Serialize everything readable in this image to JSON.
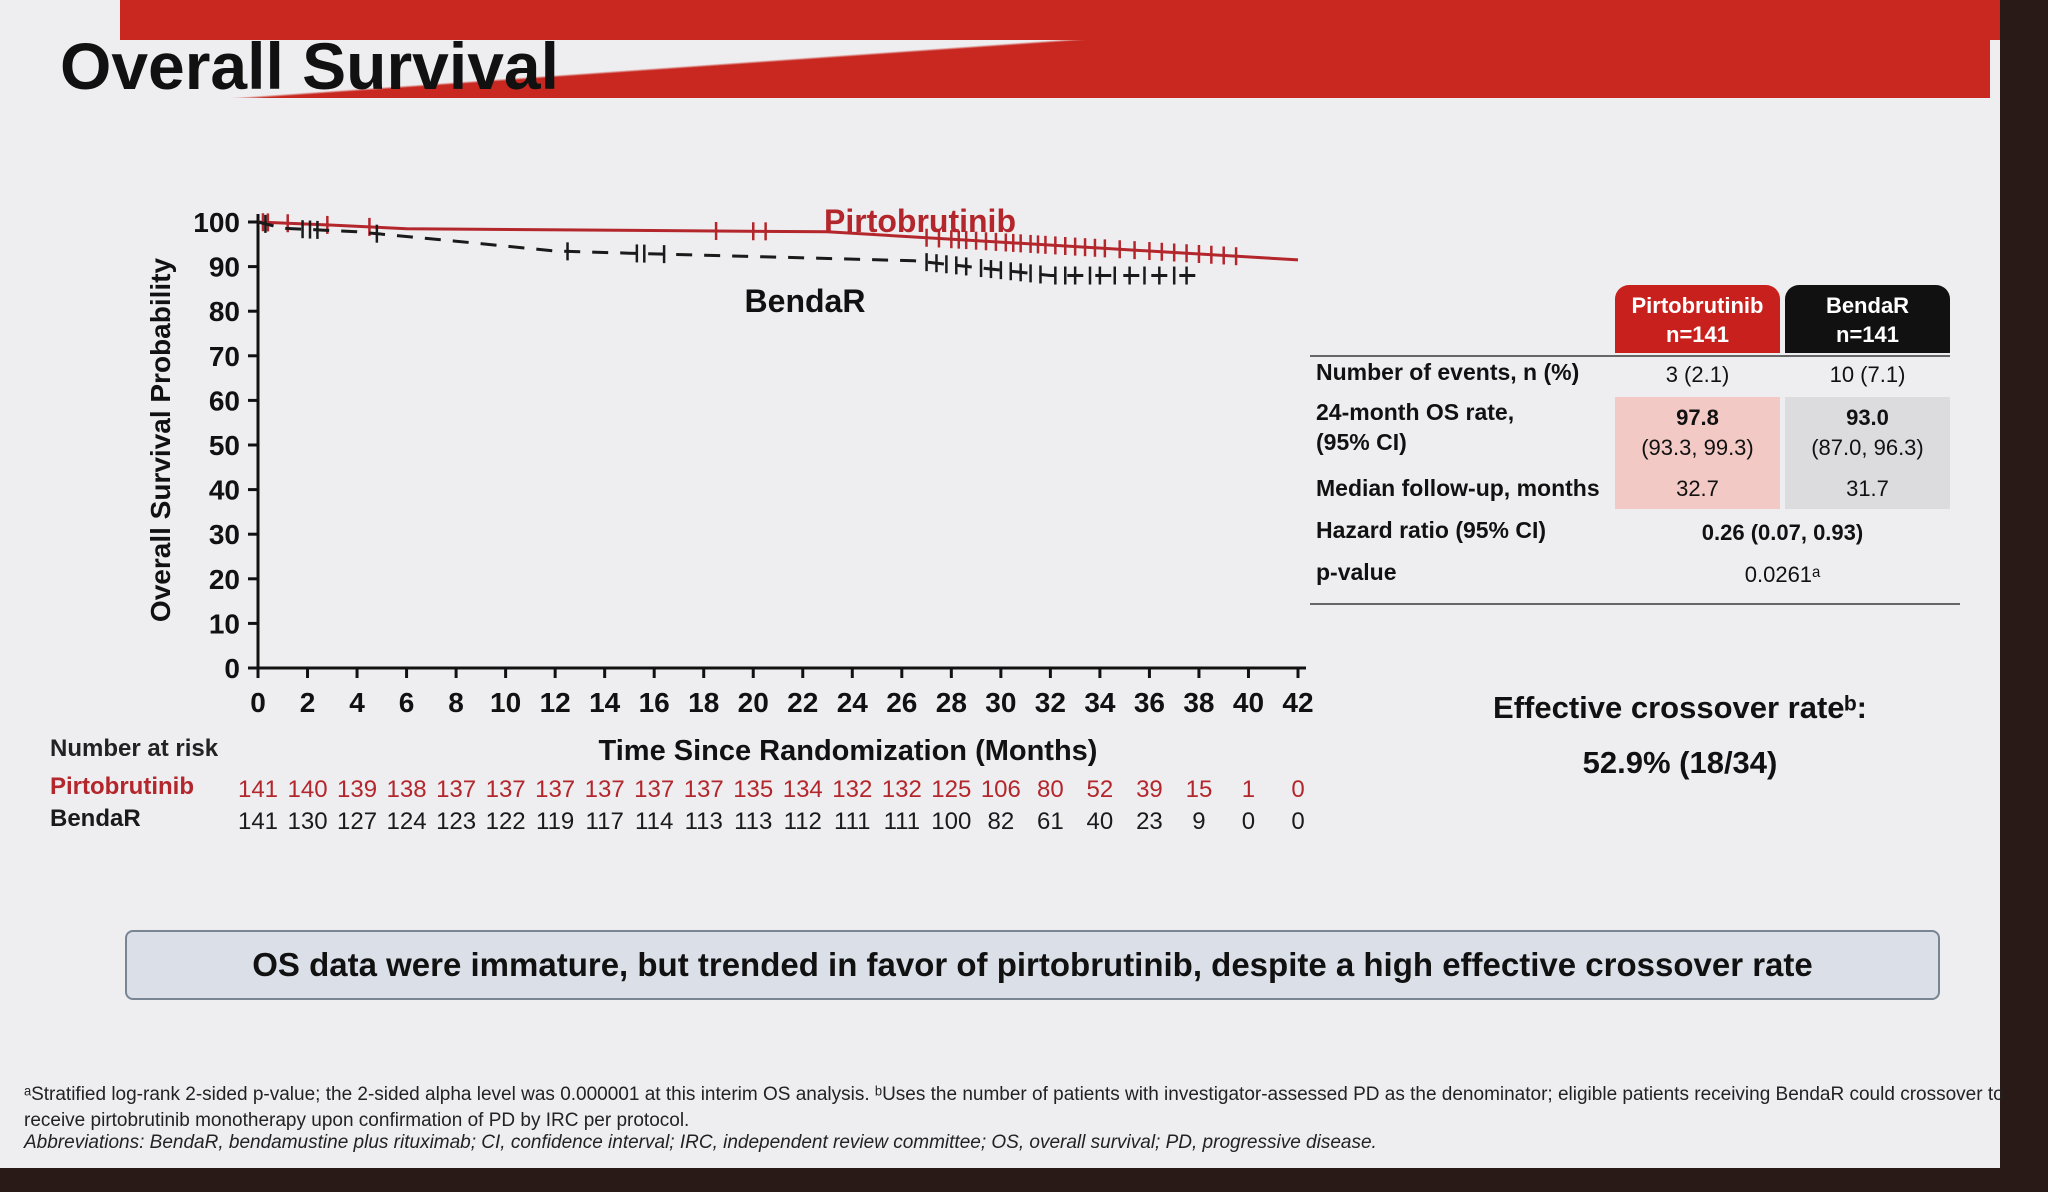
{
  "slide": {
    "title": "Overall Survival",
    "takeaway": "OS data were immature, but trended in favor of pirtobrutinib, despite a high effective crossover rate",
    "footnote_1": "ᵃStratified log-rank 2-sided p-value; the 2-sided alpha level was 0.000001 at this interim OS analysis. ᵇUses the number of patients with investigator-assessed PD as the denominator; eligible patients receiving BendaR could crossover to receive pirtobrutinib monotherapy upon confirmation of PD by IRC per protocol.",
    "footnote_2": "Abbreviations: BendaR, bendamustine plus rituximab; CI, confidence interval; IRC, independent review committee; OS, overall survival; PD, progressive disease.",
    "crossover_title": "Effective crossover rateᵇ:",
    "crossover_value": "52.9% (18/34)"
  },
  "colors": {
    "pirtobrutinib": "#b3262c",
    "bendar": "#1a1a1a",
    "band": "#c8281f"
  },
  "chart_data": {
    "type": "line",
    "xlabel": "Time Since Randomization (Months)",
    "ylabel": "Overall Survival Probability",
    "xlim": [
      0,
      42
    ],
    "ylim": [
      0,
      100
    ],
    "x_ticks": [
      0,
      2,
      4,
      6,
      8,
      10,
      12,
      14,
      16,
      18,
      20,
      22,
      24,
      26,
      28,
      30,
      32,
      34,
      36,
      38,
      40,
      42
    ],
    "y_ticks": [
      0,
      10,
      20,
      30,
      40,
      50,
      60,
      70,
      80,
      90,
      100
    ],
    "series": [
      {
        "name": "Pirtobrutinib",
        "style": "solid",
        "color": "#b3262c",
        "points": [
          [
            0,
            100
          ],
          [
            3,
            99.3
          ],
          [
            6,
            98.5
          ],
          [
            23,
            97.8
          ],
          [
            42,
            91.5
          ]
        ],
        "censor_times": [
          0.2,
          0.4,
          1.2,
          2.8,
          4.5,
          18.5,
          20,
          20.5,
          27,
          27.5,
          28,
          28.3,
          28.6,
          29,
          29.4,
          29.8,
          30.2,
          30.5,
          30.8,
          31.2,
          31.5,
          31.8,
          32.2,
          32.6,
          33,
          33.4,
          33.8,
          34.2,
          34.8,
          35.4,
          36,
          36.5,
          37,
          37.5,
          38,
          38.5,
          39,
          39.5
        ]
      },
      {
        "name": "BendaR",
        "style": "dashed",
        "color": "#1a1a1a",
        "points": [
          [
            0,
            100
          ],
          [
            1,
            98.6
          ],
          [
            4,
            97.8
          ],
          [
            8,
            95.7
          ],
          [
            12,
            93.5
          ],
          [
            15,
            93
          ],
          [
            26.5,
            91.3
          ],
          [
            32,
            88
          ],
          [
            38,
            88
          ]
        ],
        "censor_times": [
          0.3,
          1.8,
          2.1,
          2.4,
          4.8,
          12.5,
          15.3,
          15.6,
          16.4,
          27,
          27.4,
          27.8,
          28.2,
          28.6,
          29.2,
          29.6,
          30,
          30.4,
          30.8,
          31.2,
          31.6,
          32.2,
          32.6,
          33,
          33.6,
          34,
          34.6,
          35.2,
          35.8,
          36.4,
          37,
          37.5
        ]
      }
    ],
    "series_labels": [
      "Pirtobrutinib",
      "BendaR"
    ],
    "number_at_risk": {
      "heading": "Number at risk",
      "rows": [
        {
          "label": "Pirtobrutinib",
          "values": [
            "141",
            "140",
            "139",
            "138",
            "137",
            "137",
            "137",
            "137",
            "137",
            "137",
            "135",
            "134",
            "132",
            "132",
            "125",
            "106",
            "80",
            "52",
            "39",
            "15",
            "1",
            "0"
          ]
        },
        {
          "label": "BendaR",
          "values": [
            "141",
            "130",
            "127",
            "124",
            "123",
            "122",
            "119",
            "117",
            "114",
            "113",
            "113",
            "112",
            "111",
            "111",
            "100",
            "82",
            "61",
            "40",
            "23",
            "9",
            "0",
            "0"
          ]
        }
      ]
    }
  },
  "stats_table": {
    "headers": [
      {
        "name": "Pirtobrutinib",
        "n": "n=141"
      },
      {
        "name": "BendaR",
        "n": "n=141"
      }
    ],
    "rows": [
      {
        "label": "Number of events, n (%)",
        "pirtobrutinib": "3 (2.1)",
        "bendar": "10 (7.1)"
      },
      {
        "label_line1": "24-month OS rate,",
        "label_line2": "(95% CI)",
        "pirtobrutinib_main": "97.8",
        "pirtobrutinib_ci": "(93.3, 99.3)",
        "bendar_main": "93.0",
        "bendar_ci": "(87.0, 96.3)"
      },
      {
        "label": "Median follow-up, months",
        "pirtobrutinib": "32.7",
        "bendar": "31.7"
      },
      {
        "label": "Hazard ratio (95% CI)",
        "value": "0.26 (0.07, 0.93)"
      },
      {
        "label": "p-value",
        "value": "0.0261ᵃ"
      }
    ]
  }
}
